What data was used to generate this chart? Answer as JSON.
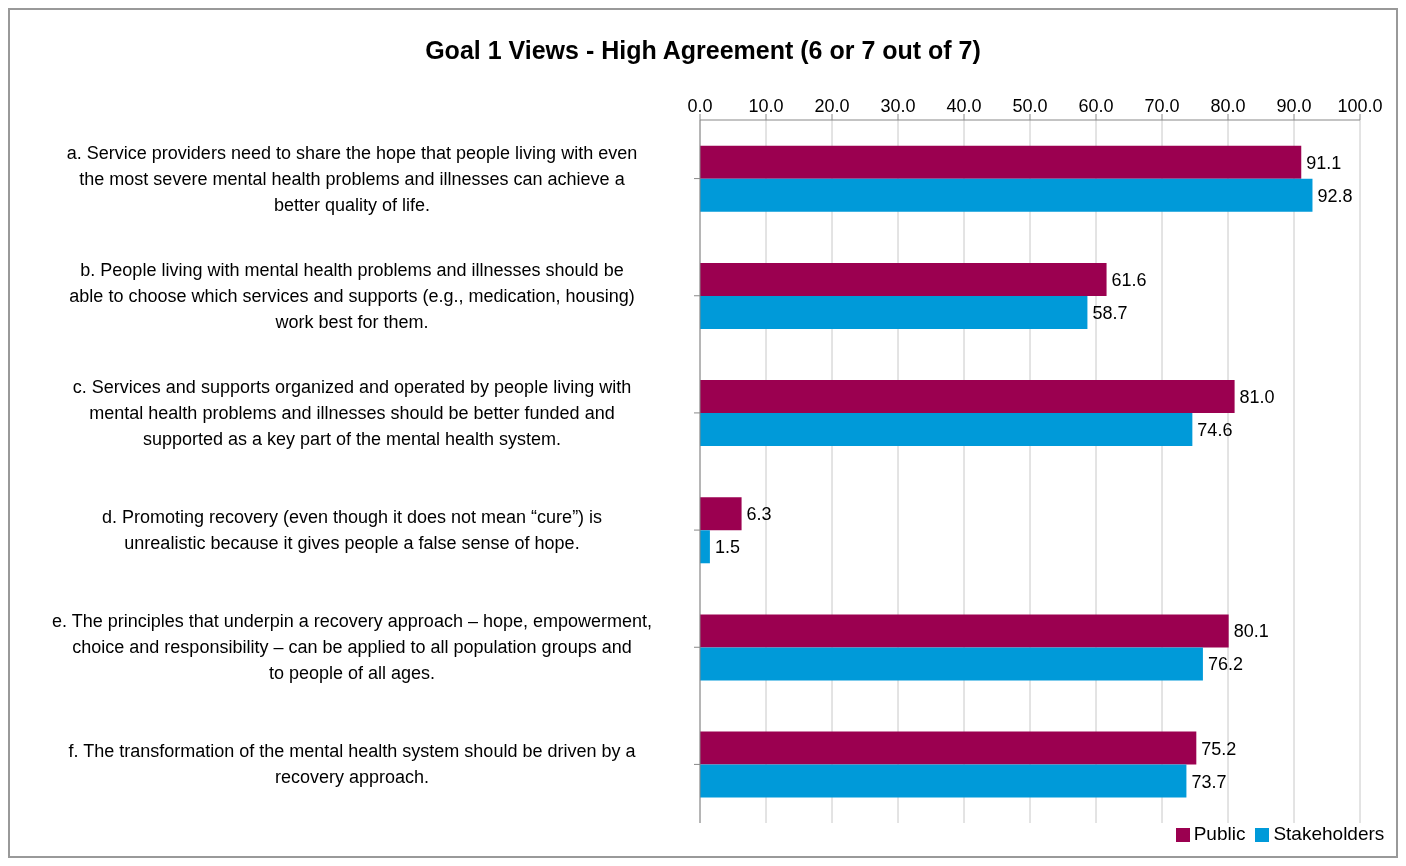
{
  "chart_data": {
    "type": "bar",
    "orientation": "horizontal",
    "title": "Goal 1 Views - High Agreement (6 or 7 out of 7)",
    "categories": [
      "a. Service providers need to share the hope that people living with even the most severe mental health problems and illnesses can achieve a better quality of life.",
      "b. People living with mental health problems and illnesses should be able to choose which services and supports (e.g., medication, housing) work best for them.",
      "c. Services and supports organized and operated by people living with mental health problems and illnesses should be better funded and supported as a key part of the mental health system.",
      "d. Promoting recovery (even though it does not mean “cure”) is unrealistic because it gives people a false sense of hope.",
      "e. The principles that underpin a recovery approach – hope, empowerment, choice and responsibility – can be applied to all population groups and to people of all ages.",
      "f. The transformation of the mental health system should be driven by a recovery approach."
    ],
    "series": [
      {
        "name": "Public",
        "color": "#9b0050",
        "values": [
          91.1,
          61.6,
          81.0,
          6.3,
          80.1,
          75.2
        ],
        "value_labels": [
          "91.1",
          "61.6",
          "81.0",
          "6.3",
          "80.1",
          "75.2"
        ]
      },
      {
        "name": "Stakeholders",
        "color": "#009ad9",
        "values": [
          92.8,
          58.7,
          74.6,
          1.5,
          76.2,
          73.7
        ],
        "value_labels": [
          "92.8",
          "58.7",
          "74.6",
          "1.5",
          "76.2",
          "73.7"
        ]
      }
    ],
    "xlim": [
      0,
      100
    ],
    "xticks": [
      {
        "value": 0,
        "label": "0.0"
      },
      {
        "value": 10,
        "label": "10.0"
      },
      {
        "value": 20,
        "label": "20.0"
      },
      {
        "value": 30,
        "label": "30.0"
      },
      {
        "value": 40,
        "label": "40.0"
      },
      {
        "value": 50,
        "label": "50.0"
      },
      {
        "value": 60,
        "label": "60.0"
      },
      {
        "value": 70,
        "label": "70.0"
      },
      {
        "value": 80,
        "label": "80.0"
      },
      {
        "value": 90,
        "label": "90.0"
      },
      {
        "value": 100,
        "label": "100.0"
      }
    ],
    "grid": "x",
    "legend": "bottom"
  }
}
